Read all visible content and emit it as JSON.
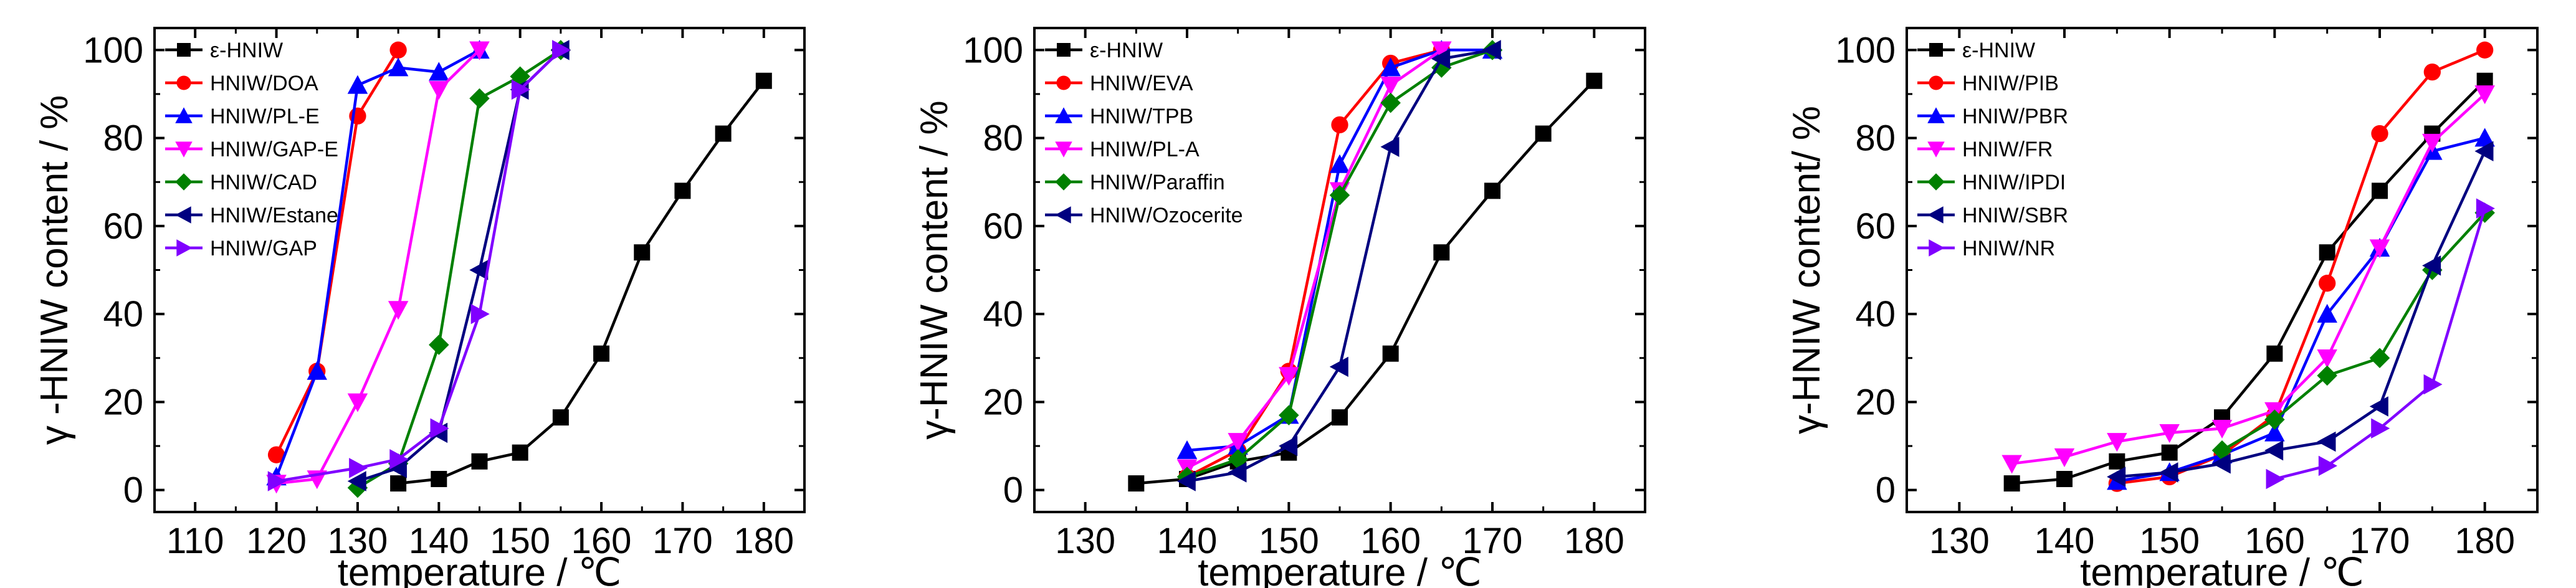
{
  "chart_data": [
    {
      "type": "line",
      "xlabel": "temperature / ℃",
      "ylabel": "γ -HNIW content / %",
      "xlim": [
        105,
        185
      ],
      "ylim": [
        -5,
        105
      ],
      "xticks": [
        110,
        120,
        130,
        140,
        150,
        160,
        170,
        180
      ],
      "xtick_labels": [
        "110",
        "120",
        "130",
        "140",
        "150",
        "160",
        "170",
        "180"
      ],
      "yticks": [
        0,
        20,
        40,
        60,
        80,
        100
      ],
      "ytick_labels": [
        "0",
        "20",
        "40",
        "60",
        "80",
        "100"
      ],
      "legend_position": "top-left",
      "series": [
        {
          "name": "ε-HNIW",
          "color": "#000000",
          "marker": "square",
          "points": [
            [
              135,
              1.5
            ],
            [
              140,
              2.5
            ],
            [
              145,
              6.5
            ],
            [
              150,
              8.5
            ],
            [
              155,
              16.5
            ],
            [
              160,
              31
            ],
            [
              165,
              54
            ],
            [
              170,
              68
            ],
            [
              175,
              81
            ],
            [
              180,
              93
            ]
          ]
        },
        {
          "name": "HNIW/DOA",
          "color": "#ff0000",
          "marker": "circle",
          "points": [
            [
              120,
              8
            ],
            [
              125,
              27
            ],
            [
              130,
              85
            ],
            [
              135,
              100
            ]
          ]
        },
        {
          "name": "HNIW/PL-E",
          "color": "#0000ff",
          "marker": "triangle-up",
          "points": [
            [
              120,
              3
            ],
            [
              125,
              27
            ],
            [
              130,
              92
            ],
            [
              135,
              96
            ],
            [
              140,
              95
            ],
            [
              145,
              100
            ]
          ]
        },
        {
          "name": "HNIW/GAP-E",
          "color": "#ff00ff",
          "marker": "triangle-down",
          "points": [
            [
              120,
              1.5
            ],
            [
              125,
              2.5
            ],
            [
              130,
              20
            ],
            [
              135,
              41
            ],
            [
              140,
              91
            ],
            [
              145,
              100
            ]
          ]
        },
        {
          "name": "HNIW/CAD",
          "color": "#008000",
          "marker": "diamond",
          "points": [
            [
              130,
              0.5
            ],
            [
              135,
              6
            ],
            [
              140,
              33
            ],
            [
              145,
              89
            ],
            [
              150,
              94
            ],
            [
              155,
              100
            ]
          ]
        },
        {
          "name": "HNIW/Estane",
          "color": "#000080",
          "marker": "triangle-left",
          "points": [
            [
              130,
              2
            ],
            [
              135,
              5
            ],
            [
              140,
              13
            ],
            [
              145,
              50
            ],
            [
              150,
              91
            ],
            [
              155,
              100
            ]
          ]
        },
        {
          "name": "HNIW/GAP",
          "color": "#8000ff",
          "marker": "triangle-right",
          "points": [
            [
              120,
              2
            ],
            [
              130,
              5
            ],
            [
              135,
              7
            ],
            [
              140,
              14
            ],
            [
              145,
              40
            ],
            [
              150,
              91
            ],
            [
              155,
              100
            ]
          ]
        }
      ]
    },
    {
      "type": "line",
      "xlabel": "temperature / ℃",
      "ylabel": "γ-HNIW content / %",
      "xlim": [
        125,
        185
      ],
      "ylim": [
        -5,
        105
      ],
      "xticks": [
        130,
        140,
        150,
        160,
        170,
        180
      ],
      "xtick_labels": [
        "130",
        "140",
        "150",
        "160",
        "170",
        "180"
      ],
      "yticks": [
        0,
        20,
        40,
        60,
        80,
        100
      ],
      "ytick_labels": [
        "0",
        "20",
        "40",
        "60",
        "80",
        "100"
      ],
      "legend_position": "top-left",
      "series": [
        {
          "name": "ε-HNIW",
          "color": "#000000",
          "marker": "square",
          "points": [
            [
              135,
              1.5
            ],
            [
              140,
              2.5
            ],
            [
              145,
              6.5
            ],
            [
              150,
              8.5
            ],
            [
              155,
              16.5
            ],
            [
              160,
              31
            ],
            [
              165,
              54
            ],
            [
              170,
              68
            ],
            [
              175,
              81
            ],
            [
              180,
              93
            ]
          ]
        },
        {
          "name": "HNIW/EVA",
          "color": "#ff0000",
          "marker": "circle",
          "points": [
            [
              140,
              3
            ],
            [
              145,
              9
            ],
            [
              150,
              27
            ],
            [
              155,
              83
            ],
            [
              160,
              97
            ],
            [
              165,
              100
            ]
          ]
        },
        {
          "name": "HNIW/TPB",
          "color": "#0000ff",
          "marker": "triangle-up",
          "points": [
            [
              140,
              9
            ],
            [
              145,
              10
            ],
            [
              150,
              17
            ],
            [
              155,
              74
            ],
            [
              160,
              96
            ],
            [
              165,
              100
            ],
            [
              170,
              100
            ]
          ]
        },
        {
          "name": "HNIW/PL-A",
          "color": "#ff00ff",
          "marker": "triangle-down",
          "points": [
            [
              140,
              5
            ],
            [
              145,
              11
            ],
            [
              150,
              26
            ],
            [
              155,
              68
            ],
            [
              160,
              92
            ],
            [
              165,
              100
            ]
          ]
        },
        {
          "name": "HNIW/Paraffin",
          "color": "#008000",
          "marker": "diamond",
          "points": [
            [
              140,
              3
            ],
            [
              145,
              7
            ],
            [
              150,
              17
            ],
            [
              155,
              67
            ],
            [
              160,
              88
            ],
            [
              165,
              96
            ],
            [
              170,
              100
            ]
          ]
        },
        {
          "name": "HNIW/Ozocerite",
          "color": "#000080",
          "marker": "triangle-left",
          "points": [
            [
              140,
              2
            ],
            [
              145,
              4
            ],
            [
              150,
              10
            ],
            [
              155,
              28
            ],
            [
              160,
              78
            ],
            [
              165,
              98
            ],
            [
              170,
              100
            ]
          ]
        }
      ]
    },
    {
      "type": "line",
      "xlabel": "temperature / ℃",
      "ylabel": "γ-HNIW content/ %",
      "xlim": [
        125,
        185
      ],
      "ylim": [
        -5,
        105
      ],
      "xticks": [
        130,
        140,
        150,
        160,
        170,
        180
      ],
      "xtick_labels": [
        "130",
        "140",
        "150",
        "160",
        "170",
        "180"
      ],
      "yticks": [
        0,
        20,
        40,
        60,
        80,
        100
      ],
      "ytick_labels": [
        "0",
        "20",
        "40",
        "60",
        "80",
        "100"
      ],
      "legend_position": "top-left",
      "series": [
        {
          "name": "ε-HNIW",
          "color": "#000000",
          "marker": "square",
          "points": [
            [
              135,
              1.5
            ],
            [
              140,
              2.5
            ],
            [
              145,
              6.5
            ],
            [
              150,
              8.5
            ],
            [
              155,
              16.5
            ],
            [
              160,
              31
            ],
            [
              165,
              54
            ],
            [
              170,
              68
            ],
            [
              175,
              81
            ],
            [
              180,
              93
            ]
          ]
        },
        {
          "name": "HNIW/PIB",
          "color": "#ff0000",
          "marker": "circle",
          "points": [
            [
              145,
              1.5
            ],
            [
              150,
              3
            ],
            [
              155,
              8
            ],
            [
              160,
              17
            ],
            [
              165,
              47
            ],
            [
              170,
              81
            ],
            [
              175,
              95
            ],
            [
              180,
              100
            ]
          ]
        },
        {
          "name": "HNIW/PBR",
          "color": "#0000ff",
          "marker": "triangle-up",
          "points": [
            [
              145,
              2
            ],
            [
              150,
              4
            ],
            [
              155,
              8
            ],
            [
              160,
              13
            ],
            [
              165,
              40
            ],
            [
              170,
              55
            ],
            [
              175,
              77
            ],
            [
              180,
              80
            ]
          ]
        },
        {
          "name": "HNIW/FR",
          "color": "#ff00ff",
          "marker": "triangle-down",
          "points": [
            [
              135,
              6
            ],
            [
              140,
              7.5
            ],
            [
              145,
              11
            ],
            [
              150,
              13
            ],
            [
              155,
              14
            ],
            [
              160,
              18
            ],
            [
              165,
              30
            ],
            [
              170,
              55
            ],
            [
              175,
              79
            ],
            [
              180,
              90
            ]
          ]
        },
        {
          "name": "HNIW/IPDI",
          "color": "#008000",
          "marker": "diamond",
          "points": [
            [
              155,
              9
            ],
            [
              160,
              16
            ],
            [
              165,
              26
            ],
            [
              170,
              30
            ],
            [
              175,
              50
            ],
            [
              180,
              63
            ]
          ]
        },
        {
          "name": "HNIW/SBR",
          "color": "#000080",
          "marker": "triangle-left",
          "points": [
            [
              145,
              3
            ],
            [
              150,
              4
            ],
            [
              155,
              6
            ],
            [
              160,
              9
            ],
            [
              165,
              11
            ],
            [
              170,
              19
            ],
            [
              175,
              51
            ],
            [
              180,
              77
            ]
          ]
        },
        {
          "name": "HNIW/NR",
          "color": "#8000ff",
          "marker": "triangle-right",
          "points": [
            [
              160,
              2.5
            ],
            [
              165,
              5.5
            ],
            [
              170,
              14
            ],
            [
              175,
              24
            ],
            [
              180,
              64
            ]
          ]
        }
      ]
    }
  ]
}
